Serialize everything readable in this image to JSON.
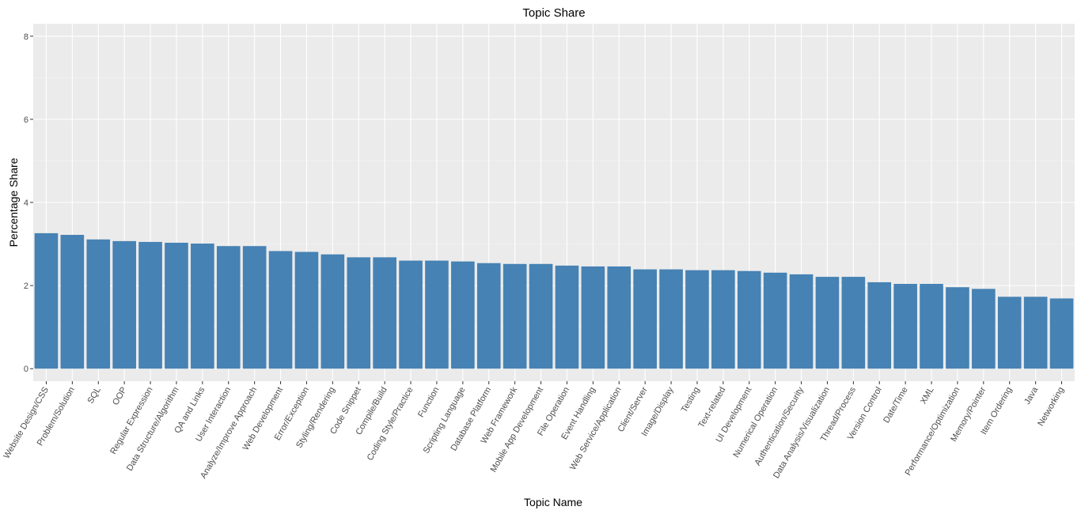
{
  "chart_data": {
    "type": "bar",
    "title": "Topic Share",
    "xlabel": "Topic Name",
    "ylabel": "Percentage Share",
    "ylim": [
      -0.3,
      8.3
    ],
    "yticks": [
      0,
      2,
      4,
      6,
      8
    ],
    "grid": true,
    "legend": "none",
    "colors": {
      "bar": "#4682B4",
      "panel": "#EBEBEB",
      "grid_major": "#FFFFFF",
      "grid_minor": "#F5F5F5",
      "tick": "#333333"
    },
    "categories": [
      "Website Design/CSS",
      "Problem/Solution",
      "SQL",
      "OOP",
      "Regular Expression",
      "Data Structure/Algorithm",
      "QA and Links",
      "User Interaction",
      "Analyze/Improve Approach",
      "Web Development",
      "Error/Exception",
      "Styling/Rendering",
      "Code Snippet",
      "Compile/Build",
      "Coding Style/Practice",
      "Function",
      "Scripting Language",
      "Database Platform",
      "Web Framework",
      "Mobile App Development",
      "File Operation",
      "Event Handling",
      "Web Service/Application",
      "Client/Server",
      "Image/Display",
      "Testing",
      "Text-related",
      "UI Development",
      "Numerical Operation",
      "Authentication/Security",
      "Data Analysis/Visualization",
      "Thread/Process",
      "Version Control",
      "Date/Time",
      "XML",
      "Performance/Optimization",
      "Memory/Pointer",
      "Item Ordering",
      "Java",
      "Networking"
    ],
    "values": [
      3.26,
      3.22,
      3.11,
      3.07,
      3.05,
      3.03,
      3.01,
      2.95,
      2.95,
      2.83,
      2.81,
      2.75,
      2.68,
      2.68,
      2.6,
      2.6,
      2.58,
      2.54,
      2.52,
      2.52,
      2.48,
      2.46,
      2.46,
      2.39,
      2.39,
      2.37,
      2.37,
      2.35,
      2.31,
      2.27,
      2.21,
      2.21,
      2.08,
      2.04,
      2.04,
      1.96,
      1.92,
      1.73,
      1.73,
      1.69
    ]
  }
}
